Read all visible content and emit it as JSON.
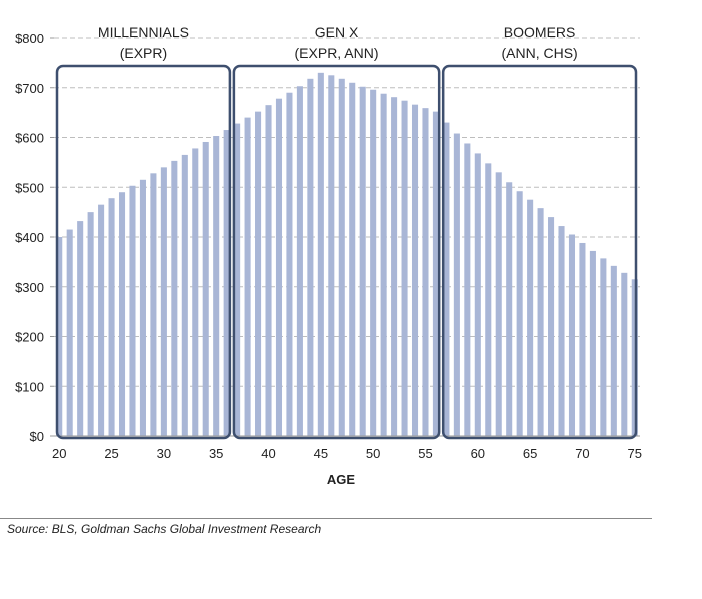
{
  "chart_data": {
    "type": "bar",
    "xlabel": "AGE",
    "ylabel": "",
    "ylim": [
      0,
      800
    ],
    "yticks": [
      0,
      100,
      200,
      300,
      400,
      500,
      600,
      700,
      800
    ],
    "ytick_labels": [
      "$0",
      "$100",
      "$200",
      "$300",
      "$400",
      "$500",
      "$600",
      "$700",
      "$800"
    ],
    "xticks": [
      20,
      25,
      30,
      35,
      40,
      45,
      50,
      55,
      60,
      65,
      70,
      75
    ],
    "grid": true,
    "bar_color": "#a9b6d6",
    "x": [
      20,
      21,
      22,
      23,
      24,
      25,
      26,
      27,
      28,
      29,
      30,
      31,
      32,
      33,
      34,
      35,
      36,
      37,
      38,
      39,
      40,
      41,
      42,
      43,
      44,
      45,
      46,
      47,
      48,
      49,
      50,
      51,
      52,
      53,
      54,
      55,
      56,
      57,
      58,
      59,
      60,
      61,
      62,
      63,
      64,
      65,
      66,
      67,
      68,
      69,
      70,
      71,
      72,
      73,
      74,
      75
    ],
    "values": [
      400,
      415,
      432,
      450,
      465,
      478,
      490,
      503,
      515,
      528,
      540,
      553,
      565,
      578,
      591,
      603,
      615,
      628,
      640,
      652,
      665,
      678,
      690,
      703,
      718,
      730,
      725,
      718,
      710,
      702,
      696,
      688,
      681,
      674,
      666,
      659,
      652,
      630,
      608,
      588,
      568,
      548,
      530,
      510,
      492,
      475,
      458,
      440,
      422,
      405,
      388,
      372,
      357,
      342,
      328,
      315
    ],
    "groups": [
      {
        "name": "MILLENNIALS",
        "tickers": "(EXPR)",
        "from": 20,
        "to": 36
      },
      {
        "name": "GEN X",
        "tickers": "(EXPR, ANN)",
        "from": 37,
        "to": 56
      },
      {
        "name": "BOOMERS",
        "tickers": "(ANN, CHS)",
        "from": 57,
        "to": 75
      }
    ],
    "group_box_color": "#3e4f6e"
  },
  "source": "Source: BLS, Goldman Sachs Global Investment Research"
}
